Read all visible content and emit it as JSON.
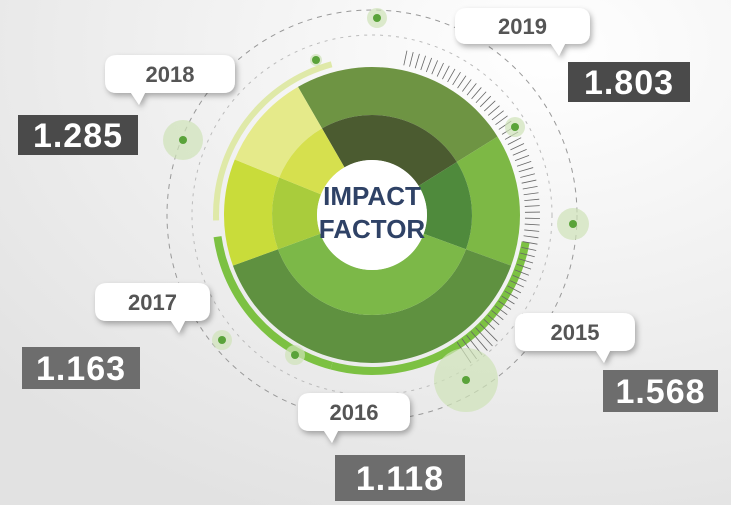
{
  "center": {
    "line1": "IMPACT",
    "line2": "FACTOR"
  },
  "items": [
    {
      "year": "2019",
      "value": "1.803"
    },
    {
      "year": "2018",
      "value": "1.285"
    },
    {
      "year": "2017",
      "value": "1.163"
    },
    {
      "year": "2016",
      "value": "1.118"
    },
    {
      "year": "2015",
      "value": "1.568"
    }
  ]
}
